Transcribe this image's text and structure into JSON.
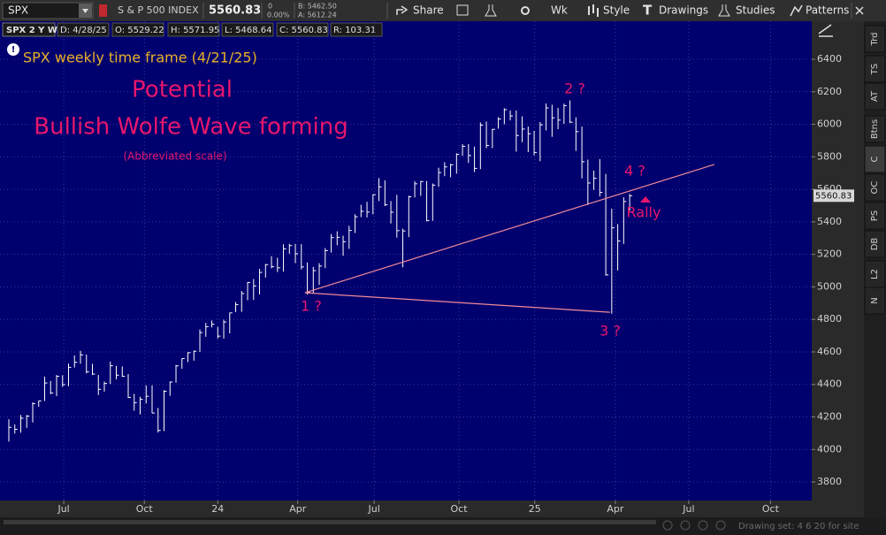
{
  "toolbar": {
    "symbol": "SPX",
    "description": "S & P 500 INDEX",
    "last": "5560.83",
    "change": "0",
    "change_pct": "0.00%",
    "bid": "B: 5462.50",
    "ask": "A: 5612.24",
    "buttons": [
      "Share",
      "Wk",
      "Style",
      "Drawings",
      "Studies",
      "Patterns"
    ]
  },
  "info_bar": {
    "label": "SPX 2 Y W",
    "fields": [
      "D: 4/28/25",
      "O: 5529.22",
      "H: 5571.95",
      "L: 5468.64",
      "C: 5560.83",
      "R: 103.31"
    ]
  },
  "sidebar_tabs": [
    "Trd",
    "TS",
    "AT",
    "Btns",
    "C",
    "OC",
    "PS",
    "DB",
    "L2",
    "N"
  ],
  "status_bar": "Drawing set: 4 6 20 for site",
  "chart_data": {
    "type": "ohlc",
    "color": "#ffffff",
    "line_color": "#f08a9a",
    "grid": true,
    "ylim": [
      3686,
      6634
    ],
    "yticks": [
      3800,
      4000,
      4200,
      4400,
      4600,
      4800,
      5000,
      5200,
      5400,
      5600,
      5800,
      6000,
      6200,
      6400
    ],
    "xlim": [
      -1.48,
      134.5
    ],
    "xticks": [
      {
        "value": 9.2,
        "label": "Jul"
      },
      {
        "value": 22.7,
        "label": "Oct"
      },
      {
        "value": 35,
        "label": "24"
      },
      {
        "value": 48.4,
        "label": "Apr"
      },
      {
        "value": 61.2,
        "label": "Jul"
      },
      {
        "value": 75.4,
        "label": "Oct"
      },
      {
        "value": 88.1,
        "label": "25"
      },
      {
        "value": 101.6,
        "label": "Apr"
      },
      {
        "value": 113.9,
        "label": "Jul"
      },
      {
        "value": 127.6,
        "label": "Oct"
      }
    ],
    "high": [
      4186,
      4154,
      4212,
      4212,
      4290,
      4300,
      4448,
      4421,
      4458,
      4456,
      4528,
      4578,
      4607,
      4584,
      4527,
      4458,
      4418,
      4541,
      4514,
      4511,
      4464,
      4342,
      4324,
      4394,
      4394,
      4255,
      4365,
      4418,
      4520,
      4560,
      4598,
      4609,
      4738,
      4778,
      4793,
      4754,
      4798,
      4842,
      4907,
      4975,
      5030,
      5048,
      5111,
      5141,
      5189,
      5179,
      5262,
      5265,
      5264,
      5263,
      5150,
      5123,
      5146,
      5239,
      5325,
      5342,
      5315,
      5376,
      5447,
      5505,
      5523,
      5570,
      5669,
      5655,
      5528,
      5566,
      5358,
      5561,
      5651,
      5652,
      5651,
      5636,
      5733,
      5767,
      5757,
      5822,
      5878,
      5878,
      5863,
      6012,
      6017,
      5972,
      6044,
      6099,
      6085,
      6085,
      6049,
      5986,
      5960,
      6014,
      6128,
      6120,
      6101,
      6127,
      6147,
      6043,
      5986,
      5783,
      5715,
      5786,
      5695,
      5481,
      5386,
      5551,
      5571.95
    ],
    "low": [
      4048,
      4098,
      4103,
      4133,
      4166,
      4262,
      4298,
      4340,
      4328,
      4385,
      4389,
      4504,
      4527,
      4467,
      4458,
      4335,
      4356,
      4403,
      4431,
      4448,
      4316,
      4238,
      4216,
      4283,
      4223,
      4104,
      4113,
      4330,
      4411,
      4496,
      4537,
      4546,
      4600,
      4693,
      4751,
      4682,
      4682,
      4714,
      4845,
      4847,
      4918,
      4920,
      4953,
      5057,
      5114,
      5091,
      5094,
      5203,
      5146,
      5107,
      4953,
      4961,
      5012,
      5115,
      5211,
      5256,
      5191,
      5234,
      5331,
      5429,
      5427,
      5446,
      5528,
      5497,
      5390,
      5303,
      5120,
      5306,
      5550,
      5560,
      5403,
      5406,
      5615,
      5681,
      5674,
      5696,
      5806,
      5762,
      5706,
      5724,
      5853,
      5853,
      5973,
      6000,
      6024,
      5832,
      5890,
      5829,
      5809,
      5773,
      5962,
      5923,
      5970,
      6003,
      6008,
      5837,
      5667,
      5504,
      5597,
      5556,
      5069,
      4835,
      5101,
      5265,
      5468.64
    ],
    "close": [
      4136,
      4124,
      4192,
      4205,
      4282,
      4299,
      4409,
      4348,
      4450,
      4399,
      4505,
      4536,
      4582,
      4478,
      4464,
      4370,
      4406,
      4515,
      4457,
      4450,
      4320,
      4288,
      4308,
      4327,
      4224,
      4117,
      4358,
      4415,
      4514,
      4559,
      4595,
      4604,
      4719,
      4755,
      4770,
      4697,
      4784,
      4840,
      4891,
      4959,
      5027,
      5006,
      5089,
      5137,
      5124,
      5117,
      5234,
      5254,
      5204,
      5123,
      4967,
      5100,
      5128,
      5223,
      5303,
      5305,
      5278,
      5347,
      5431,
      5465,
      5460,
      5567,
      5615,
      5505,
      5459,
      5346,
      5344,
      5554,
      5634,
      5648,
      5408,
      5626,
      5703,
      5738,
      5751,
      5815,
      5864,
      5808,
      5729,
      5995,
      5870,
      5969,
      6032,
      6090,
      6051,
      5931,
      5971,
      5942,
      5827,
      5997,
      6101,
      6040,
      6026,
      6115,
      6013,
      5955,
      5770,
      5639,
      5668,
      5581,
      5074,
      5363,
      5282,
      5525,
      5560.83
    ],
    "lines": [
      {
        "x": [
          49.6,
          100.7
        ],
        "y": [
          4964,
          4844
        ]
      },
      {
        "x": [
          49.6,
          118.2
        ],
        "y": [
          4964,
          5753
        ]
      }
    ],
    "notes": {
      "subtitle": "SPX weekly time frame (4/21/25)",
      "title_1": "Potential",
      "title_2": "Bullish Wolfe Wave forming",
      "scale_note": "(Abbreviated scale)"
    },
    "annotations": [
      "1 ?",
      "2 ?",
      "3 ?",
      "4 ?",
      "Rally"
    ]
  }
}
